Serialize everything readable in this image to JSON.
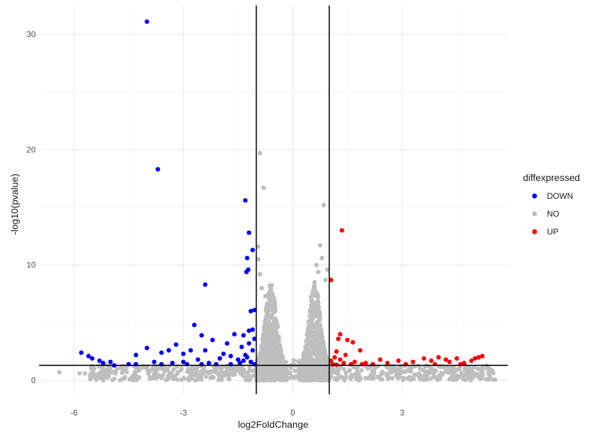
{
  "chart_data": {
    "type": "scatter",
    "title": "",
    "xlabel": "log2FoldChange",
    "ylabel": "-log10(pvalue)",
    "xlim": [
      -6.9,
      5.9
    ],
    "ylim": [
      -1.2,
      32.5
    ],
    "x_ticks": [
      -6,
      -3,
      0,
      3
    ],
    "x_tick_labels": [
      "-6",
      "-3",
      "0",
      "3"
    ],
    "y_ticks": [
      0,
      10,
      20,
      30
    ],
    "y_tick_labels": [
      "0",
      "10",
      "20",
      "30"
    ],
    "grid": true,
    "thresholds": {
      "vlines": [
        -1,
        1
      ],
      "hline": 1.3
    },
    "legend": {
      "title": "diffexpressed",
      "position": "right",
      "entries": [
        {
          "label": "DOWN",
          "color": "#0000ff"
        },
        {
          "label": "NO",
          "color": "#bebebe"
        },
        {
          "label": "UP",
          "color": "#ff0000"
        }
      ]
    },
    "series": [
      {
        "name": "DOWN",
        "color": "#0000ff",
        "points": [
          [
            -4.0,
            31.1
          ],
          [
            -3.7,
            18.3
          ],
          [
            -1.3,
            15.6
          ],
          [
            -1.2,
            12.8
          ],
          [
            -1.1,
            11.3
          ],
          [
            -1.25,
            10.6
          ],
          [
            -1.22,
            9.6
          ],
          [
            -1.27,
            9.4
          ],
          [
            -2.4,
            8.3
          ],
          [
            -1.15,
            6.0
          ],
          [
            -1.05,
            6.1
          ],
          [
            -2.7,
            4.8
          ],
          [
            -1.2,
            4.3
          ],
          [
            -1.35,
            3.9
          ],
          [
            -1.1,
            4.4
          ],
          [
            -2.5,
            3.9
          ],
          [
            -1.6,
            4.0
          ],
          [
            -2.2,
            3.5
          ],
          [
            -3.2,
            3.1
          ],
          [
            -3.4,
            2.6
          ],
          [
            -3.6,
            2.4
          ],
          [
            -4.0,
            2.8
          ],
          [
            -2.8,
            2.6
          ],
          [
            -1.8,
            3.2
          ],
          [
            -1.4,
            2.9
          ],
          [
            -1.9,
            2.3
          ],
          [
            -2.4,
            2.6
          ],
          [
            -3.0,
            2.3
          ],
          [
            -4.3,
            2.2
          ],
          [
            -5.8,
            2.4
          ],
          [
            -5.6,
            2.1
          ],
          [
            -5.5,
            1.9
          ],
          [
            -5.3,
            1.7
          ],
          [
            -5.2,
            1.5
          ],
          [
            -5.0,
            1.6
          ],
          [
            -4.9,
            1.3
          ],
          [
            -4.5,
            1.4
          ],
          [
            -4.3,
            1.4
          ],
          [
            -3.8,
            1.6
          ],
          [
            -3.6,
            1.4
          ],
          [
            -3.3,
            1.5
          ],
          [
            -3.0,
            1.6
          ],
          [
            -2.6,
            1.8
          ],
          [
            -2.3,
            1.5
          ],
          [
            -2.0,
            1.9
          ],
          [
            -1.7,
            2.1
          ],
          [
            -1.5,
            1.8
          ],
          [
            -1.3,
            2.2
          ],
          [
            -1.15,
            1.6
          ],
          [
            -1.05,
            1.4
          ],
          [
            -1.1,
            2.6
          ],
          [
            -1.2,
            3.2
          ],
          [
            -1.05,
            3.6
          ],
          [
            -1.25,
            2.0
          ],
          [
            -1.45,
            1.5
          ],
          [
            -1.7,
            1.4
          ],
          [
            -2.1,
            1.4
          ],
          [
            -2.5,
            1.4
          ],
          [
            -2.9,
            1.4
          ],
          [
            -1.35,
            1.7
          ]
        ]
      },
      {
        "name": "UP",
        "color": "#ff0000",
        "points": [
          [
            1.35,
            13.0
          ],
          [
            1.05,
            8.7
          ],
          [
            1.3,
            4.0
          ],
          [
            1.25,
            3.6
          ],
          [
            1.5,
            3.5
          ],
          [
            1.65,
            3.3
          ],
          [
            1.85,
            2.6
          ],
          [
            1.2,
            2.5
          ],
          [
            1.45,
            2.2
          ],
          [
            1.15,
            2.0
          ],
          [
            1.05,
            1.7
          ],
          [
            1.4,
            1.5
          ],
          [
            1.6,
            1.4
          ],
          [
            2.0,
            1.5
          ],
          [
            2.4,
            1.8
          ],
          [
            2.6,
            1.5
          ],
          [
            2.9,
            1.7
          ],
          [
            3.3,
            1.6
          ],
          [
            3.6,
            1.9
          ],
          [
            3.8,
            1.7
          ],
          [
            4.0,
            2.0
          ],
          [
            4.2,
            1.8
          ],
          [
            4.3,
            1.6
          ],
          [
            4.5,
            1.9
          ],
          [
            4.7,
            1.5
          ],
          [
            4.9,
            1.7
          ],
          [
            5.0,
            1.9
          ],
          [
            5.1,
            2.0
          ],
          [
            5.2,
            2.1
          ],
          [
            3.1,
            1.4
          ],
          [
            2.2,
            1.4
          ],
          [
            1.7,
            1.6
          ],
          [
            1.1,
            1.4
          ],
          [
            1.3,
            1.8
          ],
          [
            1.9,
            1.4
          ],
          [
            3.9,
            1.4
          ],
          [
            4.6,
            1.4
          ],
          [
            1.2,
            1.35
          ]
        ]
      },
      {
        "name": "NO",
        "color": "#bebebe",
        "points": [
          [
            -0.9,
            19.7
          ],
          [
            -0.8,
            16.7
          ],
          [
            0.85,
            15.2
          ],
          [
            0.75,
            11.7
          ],
          [
            -0.95,
            11.6
          ],
          [
            0.65,
            10.0
          ],
          [
            0.7,
            9.4
          ],
          [
            0.6,
            8.5
          ],
          [
            -0.9,
            9.2
          ],
          [
            -0.85,
            8.0
          ],
          [
            0.95,
            9.6
          ],
          [
            -0.75,
            7.3
          ],
          [
            0.5,
            7.2
          ],
          [
            -6.4,
            0.7
          ],
          [
            -5.85,
            0.6
          ],
          [
            -5.7,
            0.6
          ],
          [
            5.2,
            0.6
          ],
          [
            -0.6,
            7.4
          ],
          [
            0.55,
            6.8
          ],
          [
            0.9,
            8.7
          ],
          [
            -0.95,
            10.5
          ],
          [
            0.8,
            10.6
          ]
        ]
      }
    ]
  }
}
